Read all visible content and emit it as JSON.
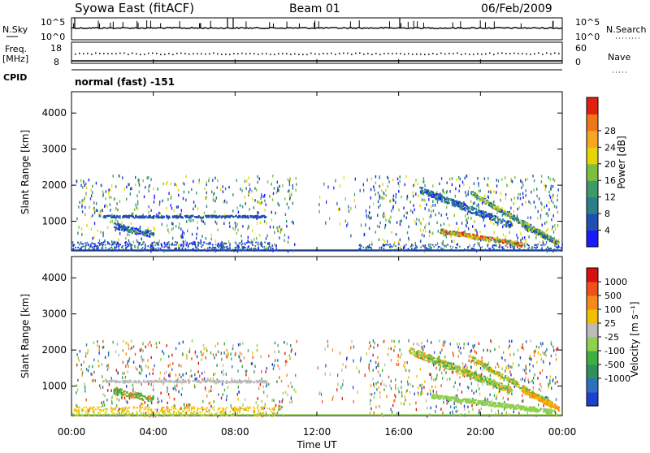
{
  "header": {
    "station": "Syowa East (fitACF)",
    "beam": "Beam 01",
    "date": "06/Feb/2009"
  },
  "top_panels": {
    "nsky_label": "N.Sky",
    "nsky_ticks": [
      "10^5",
      "10^0"
    ],
    "nsearch_label": "N.Search",
    "nsearch_ticks": [
      "10^5",
      "10^0"
    ],
    "freq_label_1": "Freq.",
    "freq_label_2": "[MHz]",
    "freq_ticks": [
      "18",
      "8"
    ],
    "nave_label": "Nave",
    "nave_ticks": [
      "60",
      "0"
    ],
    "cpid_label": "CPID",
    "cpid_value": "normal (fast) -151"
  },
  "chart_data": [
    {
      "type": "heatmap",
      "name": "power",
      "ylabel": "Slant Range [km]",
      "yticks": [
        "1000",
        "2000",
        "3000",
        "4000"
      ],
      "ylim": [
        180,
        4590
      ],
      "colorbar_label": "Power [dB]",
      "colorbar_ticks": [
        "4",
        "8",
        "12",
        "16",
        "20",
        "24",
        "28"
      ],
      "colors": [
        "#1a1aff",
        "#1f4fb0",
        "#2a7f8a",
        "#3f9a6a",
        "#7fbf3f",
        "#e8d400",
        "#f5a623",
        "#f0761a",
        "#e02010"
      ]
    },
    {
      "type": "heatmap",
      "name": "velocity",
      "ylabel": "Slant Range [km]",
      "yticks": [
        "1000",
        "2000",
        "3000",
        "4000"
      ],
      "ylim": [
        180,
        4590
      ],
      "colorbar_label": "Velocity [m s⁻¹]",
      "colorbar_ticks": [
        "1000",
        "500",
        "100",
        "25",
        "-25",
        "-100",
        "-500",
        "-1000"
      ],
      "colors": [
        "#1f3fcf",
        "#2f6fc0",
        "#2f8f5f",
        "#3faf3f",
        "#8fd04f",
        "#bbbbbb",
        "#f0c000",
        "#f58a1a",
        "#f0501a",
        "#d81010"
      ]
    }
  ],
  "xaxis": {
    "ticks": [
      "00:00",
      "04:00",
      "08:00",
      "12:00",
      "16:00",
      "20:00",
      "00:00"
    ],
    "label": "Time UT"
  }
}
